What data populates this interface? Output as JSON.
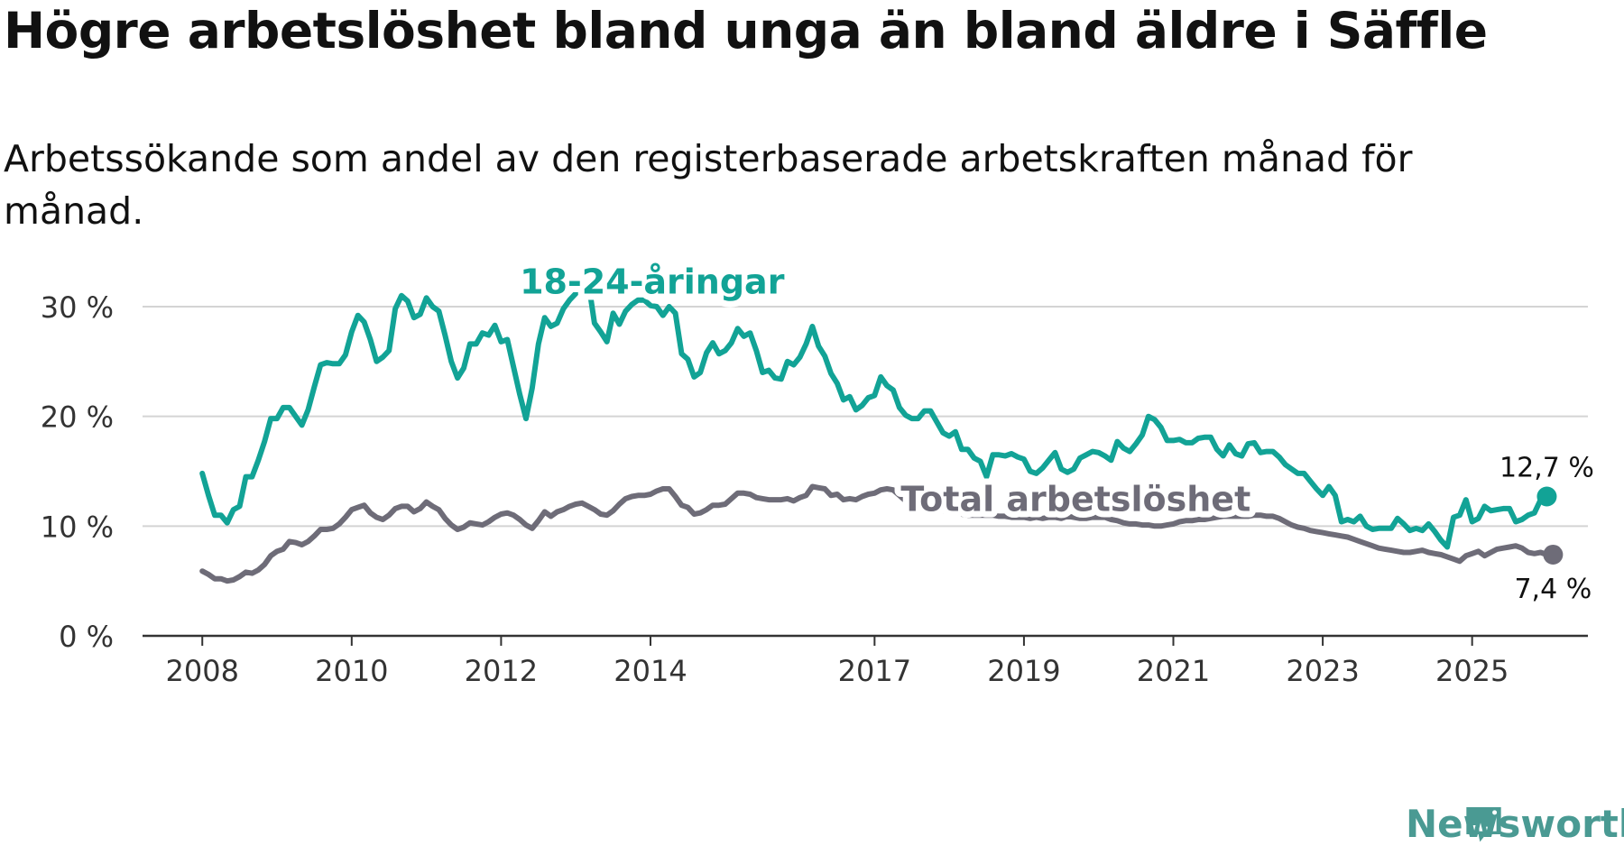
{
  "title": "Högre arbetslöshet bland unga än bland äldre i Säffle",
  "subtitle": "Arbetssökande som andel av den registerbaserade arbetskraften månad för månad.",
  "brand": {
    "name": "Newsworthy",
    "icon": "newsworthy-logo-icon",
    "color": "#4a9a93"
  },
  "colors": {
    "youth": "#12a396",
    "total": "#6e6c78",
    "grid": "#d4d4d4",
    "axis": "#333333"
  },
  "chart_data": {
    "type": "line",
    "x_start": 2008.0,
    "x_step": 0.0833333,
    "xlim": [
      2007.2,
      2026.55
    ],
    "ylim": [
      0,
      30
    ],
    "yticks": [
      0,
      10,
      20,
      30
    ],
    "ytick_labels": [
      "0 %",
      "10 %",
      "20 %",
      "30 %"
    ],
    "xticks": [
      2008,
      2010,
      2012,
      2014,
      2017,
      2019,
      2021,
      2023,
      2025
    ],
    "xtick_labels": [
      "2008",
      "2010",
      "2012",
      "2014",
      "2017",
      "2019",
      "2021",
      "2023",
      "2025"
    ],
    "series": [
      {
        "name": "18-24-åringar",
        "color": "#12a396",
        "end_label": "12,7 %",
        "values": [
          14.8,
          12.8,
          11.0,
          11.0,
          10.3,
          11.5,
          11.8,
          14.5,
          14.5,
          16.0,
          17.7,
          19.8,
          19.8,
          20.8,
          20.8,
          20.0,
          19.2,
          20.6,
          22.7,
          24.7,
          24.9,
          24.8,
          24.8,
          25.6,
          27.7,
          29.2,
          28.6,
          27.0,
          25.0,
          25.4,
          26.0,
          29.8,
          31.0,
          30.5,
          29.0,
          29.3,
          30.8,
          30.0,
          29.6,
          27.4,
          25.0,
          23.5,
          24.4,
          26.6,
          26.6,
          27.6,
          27.4,
          28.3,
          26.8,
          27.0,
          24.5,
          22.0,
          19.8,
          22.6,
          26.6,
          29.0,
          28.2,
          28.5,
          29.8,
          30.6,
          31.2,
          32.0,
          32.3,
          28.5,
          27.7,
          26.8,
          29.4,
          28.4,
          29.6,
          30.2,
          30.6,
          30.6,
          30.1,
          30.0,
          29.2,
          30.0,
          29.4,
          25.7,
          25.2,
          23.6,
          24.0,
          25.8,
          26.7,
          25.7,
          26.0,
          26.7,
          28.0,
          27.3,
          27.6,
          26.0,
          24.0,
          24.2,
          23.5,
          23.4,
          25.0,
          24.7,
          25.4,
          26.6,
          28.2,
          26.4,
          25.5,
          23.9,
          23.0,
          21.5,
          21.8,
          20.6,
          21.0,
          21.7,
          21.9,
          23.6,
          22.8,
          22.4,
          20.8,
          20.1,
          19.8,
          19.8,
          20.5,
          20.5,
          19.5,
          18.5,
          18.2,
          18.6,
          17.0,
          17.0,
          16.2,
          15.9,
          14.5,
          16.5,
          16.5,
          16.4,
          16.6,
          16.3,
          16.1,
          15.0,
          14.8,
          15.3,
          16.0,
          16.7,
          15.2,
          14.9,
          15.2,
          16.2,
          16.5,
          16.8,
          16.7,
          16.4,
          16.0,
          17.7,
          17.1,
          16.8,
          17.5,
          18.3,
          20.0,
          19.7,
          19.0,
          17.8,
          17.8,
          17.9,
          17.6,
          17.6,
          18.0,
          18.1,
          18.1,
          17.0,
          16.4,
          17.4,
          16.6,
          16.4,
          17.5,
          17.6,
          16.7,
          16.8,
          16.8,
          16.3,
          15.6,
          15.2,
          14.8,
          14.8,
          14.1,
          13.4,
          12.8,
          13.6,
          12.8,
          10.4,
          10.6,
          10.4,
          10.9,
          10.0,
          9.7,
          9.8,
          9.8,
          9.8,
          10.7,
          10.2,
          9.6,
          9.8,
          9.6,
          10.2,
          9.5,
          8.7,
          8.1,
          10.8,
          11.0,
          12.4,
          10.4,
          10.7,
          11.8,
          11.4,
          11.5,
          11.6,
          11.6,
          10.4,
          10.6,
          11.0,
          11.2,
          12.4,
          12.7
        ]
      },
      {
        "name": "Total arbetslöshet",
        "color": "#6e6c78",
        "end_label": "7,4 %",
        "values": [
          5.9,
          5.6,
          5.2,
          5.2,
          5.0,
          5.1,
          5.4,
          5.8,
          5.7,
          6.0,
          6.5,
          7.3,
          7.7,
          7.9,
          8.6,
          8.5,
          8.3,
          8.6,
          9.1,
          9.7,
          9.7,
          9.8,
          10.2,
          10.8,
          11.5,
          11.7,
          11.9,
          11.2,
          10.8,
          10.6,
          11.0,
          11.6,
          11.8,
          11.8,
          11.3,
          11.6,
          12.2,
          11.8,
          11.5,
          10.7,
          10.1,
          9.7,
          9.9,
          10.3,
          10.2,
          10.1,
          10.4,
          10.8,
          11.1,
          11.2,
          11.0,
          10.6,
          10.1,
          9.8,
          10.5,
          11.3,
          10.9,
          11.3,
          11.5,
          11.8,
          12.0,
          12.1,
          11.8,
          11.5,
          11.1,
          11.0,
          11.4,
          12.0,
          12.5,
          12.7,
          12.8,
          12.8,
          12.9,
          13.2,
          13.4,
          13.4,
          12.7,
          11.9,
          11.7,
          11.1,
          11.2,
          11.5,
          11.9,
          11.9,
          12.0,
          12.5,
          13.0,
          13.0,
          12.9,
          12.6,
          12.5,
          12.4,
          12.4,
          12.4,
          12.5,
          12.3,
          12.6,
          12.8,
          13.6,
          13.5,
          13.4,
          12.8,
          12.9,
          12.4,
          12.5,
          12.4,
          12.7,
          12.9,
          13.0,
          13.3,
          13.4,
          13.3,
          12.8,
          12.3,
          12.0,
          11.7,
          11.7,
          11.8,
          11.5,
          11.4,
          11.3,
          11.2,
          11.1,
          11.0,
          11.0,
          11.0,
          11.0,
          11.0,
          10.9,
          10.9,
          10.8,
          10.8,
          10.8,
          10.7,
          10.8,
          10.7,
          10.8,
          10.8,
          10.7,
          10.9,
          10.8,
          10.7,
          10.7,
          10.8,
          10.8,
          10.8,
          10.6,
          10.5,
          10.3,
          10.2,
          10.2,
          10.1,
          10.1,
          10.0,
          10.0,
          10.1,
          10.2,
          10.4,
          10.5,
          10.5,
          10.6,
          10.6,
          10.7,
          10.8,
          10.9,
          10.9,
          10.9,
          10.9,
          10.9,
          11.0,
          11.0,
          10.9,
          10.9,
          10.7,
          10.4,
          10.1,
          9.9,
          9.8,
          9.6,
          9.5,
          9.4,
          9.3,
          9.2,
          9.1,
          9.0,
          8.8,
          8.6,
          8.4,
          8.2,
          8.0,
          7.9,
          7.8,
          7.7,
          7.6,
          7.6,
          7.7,
          7.8,
          7.6,
          7.5,
          7.4,
          7.2,
          7.0,
          6.8,
          7.3,
          7.5,
          7.7,
          7.3,
          7.6,
          7.9,
          8.0,
          8.1,
          8.2,
          8.0,
          7.6,
          7.5,
          7.6,
          7.4,
          7.4
        ]
      }
    ],
    "annotations": [
      {
        "text": "18-24-åringar",
        "x": 2012.25,
        "y": 31.2,
        "series": 0
      },
      {
        "text": "Total arbetslöshet",
        "x": 2017.35,
        "y": 11.4,
        "series": 1
      }
    ]
  }
}
